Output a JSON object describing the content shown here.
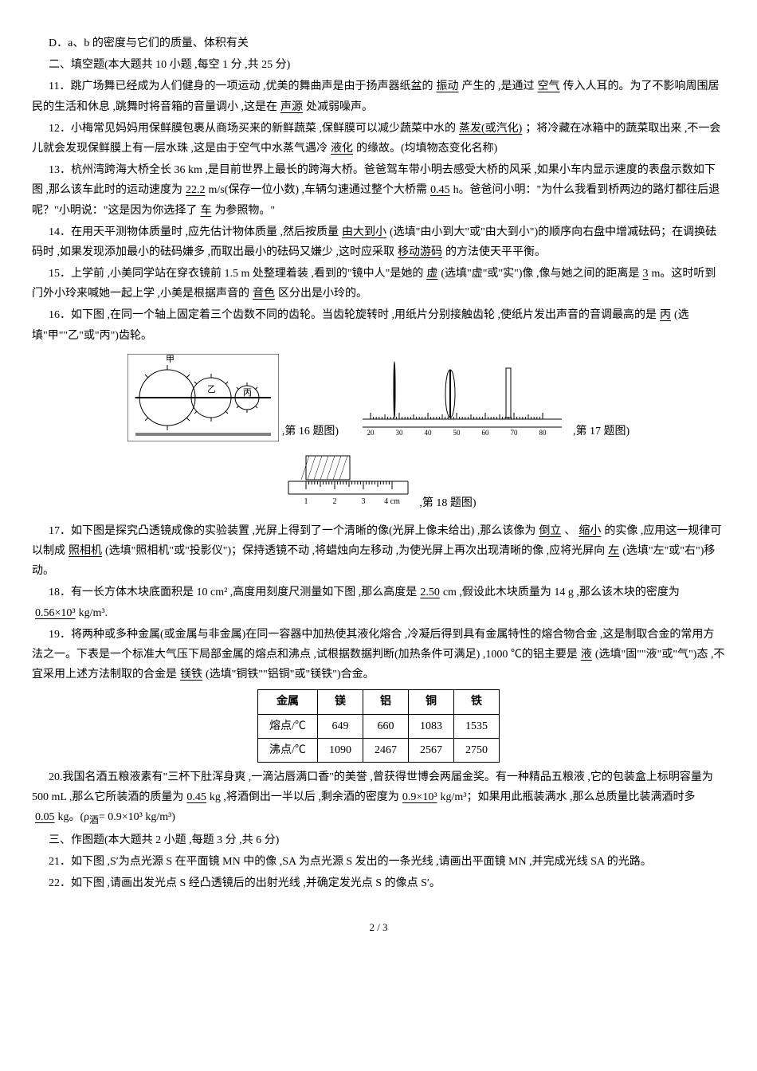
{
  "optD": "D．a、b 的密度与它们的质量、体积有关",
  "section2": "二、填空题(本大题共 10 小题 ,每空 1 分 ,共 25 分)",
  "q11_a": "11．跳广场舞已经成为人们健身的一项运动 ,优美的舞曲声是由于扬声器纸盆的",
  "q11_a1": "振动",
  "q11_b": "产生的 ,是通过",
  "q11_a2": "空气",
  "q11_c": "传入人耳的。为了不影响周围居民的生活和休息 ,跳舞时将音箱的音量调小 ,这是在",
  "q11_a3": "声源",
  "q11_d": "处减弱噪声。",
  "q12_a": "12．小梅常见妈妈用保鲜膜包裹从商场买来的新鲜蔬菜 ,保鲜膜可以减少蔬菜中水的",
  "q12_a1": "蒸发(或汽化)",
  "q12_b": "；将冷藏在冰箱中的蔬菜取出来 ,不一会儿就会发现保鲜膜上有一层水珠 ,这是由于空气中水蒸气遇冷",
  "q12_a2": "液化",
  "q12_c": "的缘故。(均填物态变化名称)",
  "q13_a": "13．杭州湾跨海大桥全长 36 km ,是目前世界上最长的跨海大桥。爸爸驾车带小明去感受大桥的风采 ,如果小车内显示速度的表盘示数如下图 ,那么该车此时的运动速度为",
  "q13_a1": "22.2",
  "q13_b": "m/s(保存一位小数) ,车辆匀速通过整个大桥需",
  "q13_a2": "0.45",
  "q13_c": "h。爸爸问小明：\"为什么我看到桥两边的路灯都往后退呢？\"小明说：\"这是因为你选择了",
  "q13_a3": "车",
  "q13_d": "为参照物。\"",
  "q14_a": "14．在用天平测物体质量时 ,应先估计物体质量 ,然后按质量",
  "q14_a1": "由大到小",
  "q14_b": "(选填\"由小到大\"或\"由大到小\")的顺序向右盘中增减砝码；在调换砝码时 ,如果发现添加最小的砝码嫌多 ,而取出最小的砝码又嫌少 ,这时应采取",
  "q14_a2": "移动游码",
  "q14_c": "的方法使天平平衡。",
  "q15_a": "15．上学前 ,小美同学站在穿衣镜前 1.5 m 处整理着装 ,看到的\"镜中人\"是她的",
  "q15_a1": "虚",
  "q15_b": "(选填\"虚\"或\"实\")像 ,像与她之间的距离是",
  "q15_a2": "3",
  "q15_c": "m。这时听到门外小玲来喊她一起上学 ,小美是根据声音的",
  "q15_a3": "音色",
  "q15_d": "区分出是小玲的。",
  "q16_a": "16．如下图 ,在同一个轴上固定着三个齿数不同的齿轮。当齿轮旋转时 ,用纸片分别接触齿轮 ,使纸片发出声音的音调最高的是",
  "q16_a1": "丙",
  "q16_b": "(选填\"甲\"\"乙\"或\"丙\")齿轮。",
  "fig16": ",第 16 题图)",
  "fig17": ",第 17 题图)",
  "fig18": ",第 18 题图)",
  "q17_a": "17．如下图是探究凸透镜成像的实验装置 ,光屏上得到了一个清晰的像(光屏上像未给出) ,那么该像为",
  "q17_a1": "倒立",
  "q17_b": "、",
  "q17_a2": "缩小",
  "q17_c": "的实像 ,应用这一规律可以制成",
  "q17_a3": "照相机",
  "q17_d": "(选填\"照相机\"或\"投影仪\")；保持透镜不动 ,将蜡烛向左移动 ,为使光屏上再次出现清晰的像 ,应将光屏向",
  "q17_a4": "左",
  "q17_e": "(选填\"左\"或\"右\")移动。",
  "q18_a": "18．有一长方体木块底面积是 10 cm² ,高度用刻度尺测量如下图 ,那么高度是",
  "q18_a1": "2.50",
  "q18_b": "cm ,假设此木块质量为 14 g ,那么该木块的密度为",
  "q18_a2": "0.56×10³",
  "q18_c": "kg/m³.",
  "q19_a": "19．将两种或多种金属(或金属与非金属)在同一容器中加热使其液化熔合 ,冷凝后得到具有金属特性的熔合物合金 ,这是制取合金的常用方法之一。下表是一个标准大气压下局部金属的熔点和沸点 ,试根据数据判断(加热条件可满足) ,1000 ℃的铝主要是",
  "q19_a1": "液",
  "q19_b": "(选填\"固\"\"液\"或\"气\")态 ,不宜采用上述方法制取的合金是",
  "q19_a2": "镁铁",
  "q19_c": "(选填\"铜铁\"\"铝铜\"或\"镁铁\")合金。",
  "table": {
    "headers": [
      "金属",
      "镁",
      "铝",
      "铜",
      "铁"
    ],
    "row1": [
      "熔点/℃",
      "649",
      "660",
      "1083",
      "1535"
    ],
    "row2": [
      "沸点/℃",
      "1090",
      "2467",
      "2567",
      "2750"
    ]
  },
  "q20_a": "20.我国名酒五粮液素有\"三杯下肚浑身爽 ,一滴沾唇满口香\"的美誉 ,曾获得世博会两届金奖。有一种精品五粮液 ,它的包装盒上标明容量为 500 mL ,那么它所装酒的质量为",
  "q20_a1": "0.45",
  "q20_b": "kg ,将酒倒出一半以后 ,剩余酒的密度为",
  "q20_a2": "0.9×10³",
  "q20_c": "kg/m³；如果用此瓶装满水 ,那么总质量比装满酒时多",
  "q20_a3": "0.05",
  "q20_d": "kg。(ρ",
  "q20_sub": "酒",
  "q20_e": "= 0.9×10³ kg/m³)",
  "section3": "三、作图题(本大题共 2 小题 ,每题 3 分 ,共 6 分)",
  "q21": "21．如下图 ,S′为点光源 S 在平面镜 MN 中的像 ,SA 为点光源 S 发出的一条光线 ,请画出平面镜 MN ,并完成光线 SA 的光路。",
  "q22": "22．如下图 ,请画出发光点 S 经凸透镜后的出射光线 ,并确定发光点 S 的像点 S′。",
  "pagenum": "2 / 3",
  "ruler17": {
    "ticks": [
      "20",
      "30",
      "40",
      "50",
      "60",
      "70",
      "80"
    ]
  },
  "ruler18": {
    "ticks": [
      "1",
      "2",
      "3",
      "4 cm"
    ]
  }
}
